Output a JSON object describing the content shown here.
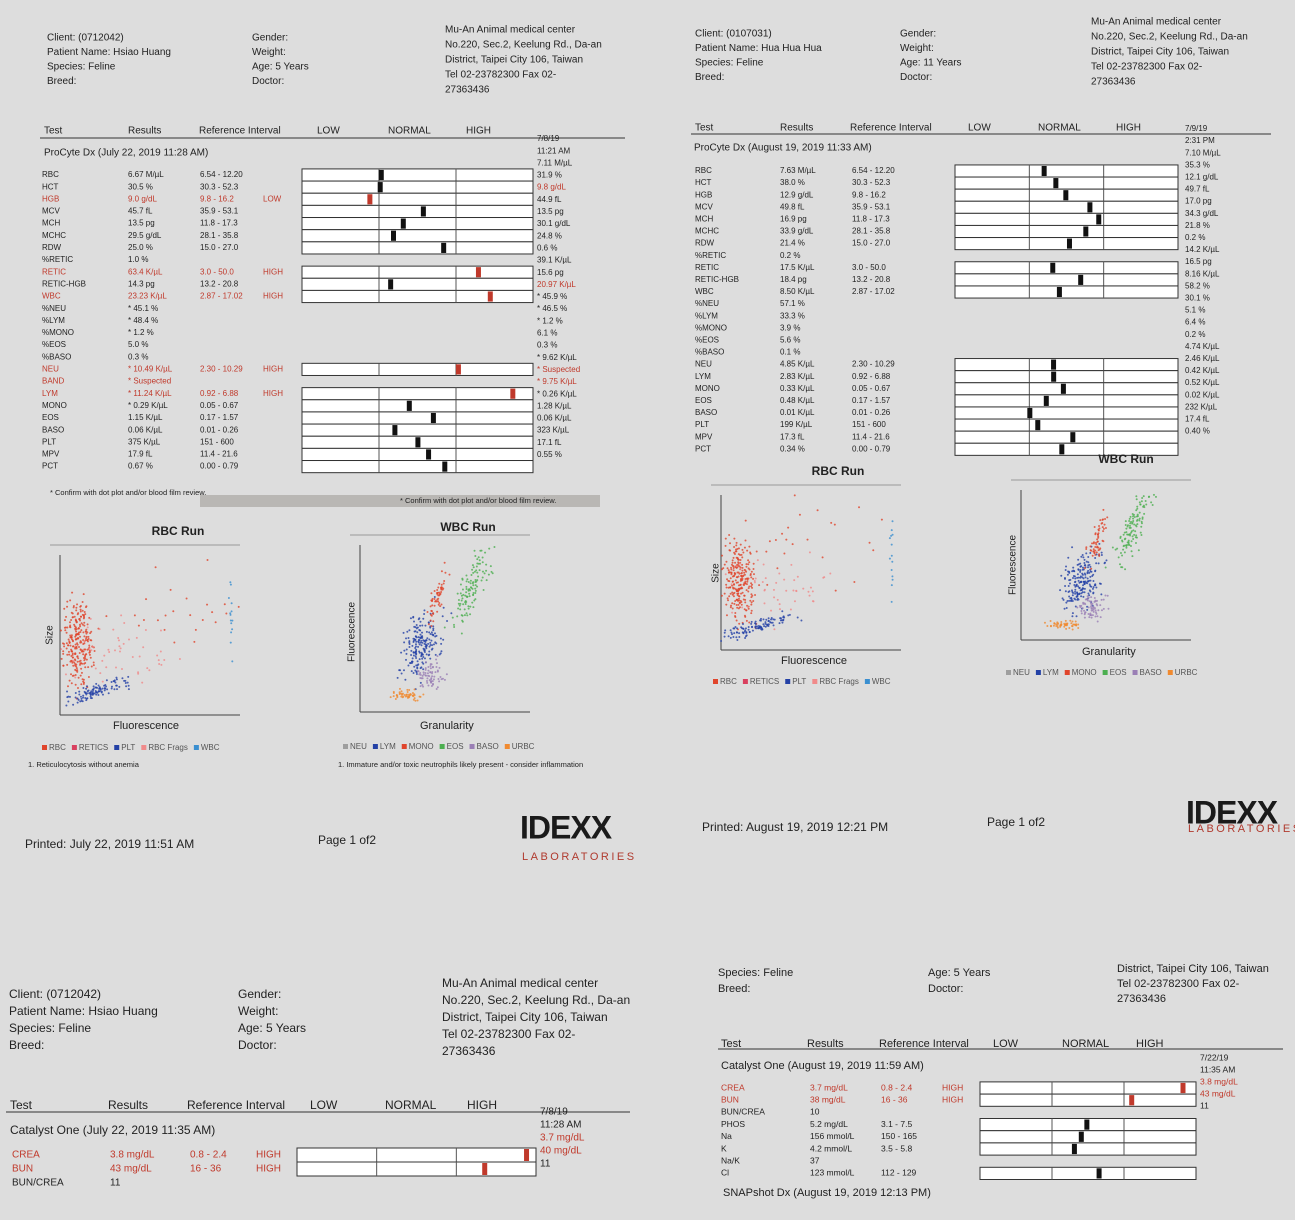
{
  "panels": [
    {
      "header": {
        "left": [
          "Client: (0712042)",
          "Patient Name: Hsiao Huang",
          "Species: Feline",
          "Breed:"
        ],
        "middle": [
          "Gender:",
          "Weight:",
          "Age: 5 Years",
          "Doctor:"
        ],
        "clinic": [
          "Mu-An Animal medical center",
          "No.220, Sec.2, Keelung Rd., Da-an",
          "District, Taipei City 106, Taiwan",
          "Tel 02-23782300  Fax 02-",
          "27363436"
        ]
      },
      "columns": {
        "test": "Test",
        "results": "Results",
        "reference": "Reference Interval",
        "low": "LOW",
        "normal": "NORMAL",
        "high": "HIGH"
      },
      "section": "ProCyte Dx (July 22, 2019 11:28 AM)",
      "rows": [
        {
          "test": "RBC",
          "result": "6.67 M/µL",
          "range": "6.54 - 12.20"
        },
        {
          "test": "HCT",
          "result": "30.5 %",
          "range": "30.3 - 52.3"
        },
        {
          "test": "HGB",
          "result": "9.0 g/dL",
          "range": "9.8 - 16.2",
          "flag": "LOW",
          "color": "#c0392b"
        },
        {
          "test": "MCV",
          "result": "45.7 fL",
          "range": "35.9 - 53.1"
        },
        {
          "test": "MCH",
          "result": "13.5 pg",
          "range": "11.8 - 17.3"
        },
        {
          "test": "MCHC",
          "result": "29.5 g/dL",
          "range": "28.1 - 35.8"
        },
        {
          "test": "RDW",
          "result": "25.0 %",
          "range": "15.0 - 27.0"
        },
        {
          "test": "%RETIC",
          "result": "1.0 %"
        },
        {
          "test": "RETIC",
          "result": "63.4 K/µL",
          "range": "3.0 - 50.0",
          "flag": "HIGH",
          "color": "#c0392b"
        },
        {
          "test": "RETIC-HGB",
          "result": "14.3 pg",
          "range": "13.2 - 20.8"
        },
        {
          "test": "WBC",
          "result": "23.23 K/µL",
          "range": "2.87 - 17.02",
          "flag": "HIGH",
          "color": "#c0392b"
        },
        {
          "test": "%NEU",
          "result": "* 45.1 %"
        },
        {
          "test": "%LYM",
          "result": "* 48.4 %"
        },
        {
          "test": "%MONO",
          "result": "* 1.2 %"
        },
        {
          "test": "%EOS",
          "result": "5.0 %"
        },
        {
          "test": "%BASO",
          "result": "0.3 %"
        },
        {
          "test": "NEU",
          "result": "* 10.49 K/µL",
          "range": "2.30 - 10.29",
          "flag": "HIGH",
          "color": "#c0392b"
        },
        {
          "test": "BAND",
          "result": "* Suspected",
          "color": "#c0392b"
        },
        {
          "test": "LYM",
          "result": "* 11.24 K/µL",
          "range": "0.92 - 6.88",
          "flag": "HIGH",
          "color": "#c0392b"
        },
        {
          "test": "MONO",
          "result": "* 0.29 K/µL",
          "range": "0.05 - 0.67"
        },
        {
          "test": "EOS",
          "result": "1.15 K/µL",
          "range": "0.17 - 1.57"
        },
        {
          "test": "BASO",
          "result": "0.06 K/µL",
          "range": "0.01 - 0.26"
        },
        {
          "test": "PLT",
          "result": "375 K/µL",
          "range": "151 - 600"
        },
        {
          "test": "MPV",
          "result": "17.9 fL",
          "range": "11.4 - 21.6"
        },
        {
          "test": "PCT",
          "result": "0.67 %",
          "range": "0.00 - 0.79"
        }
      ],
      "prior": [
        "7/8/19",
        "11:21 AM",
        "7.11 M/µL",
        "31.9 %",
        {
          "text": "9.8 g/dL",
          "color": "#c0392b"
        },
        "44.9 fL",
        "13.5 pg",
        "30.1 g/dL",
        "24.8 %",
        "0.6 %",
        "39.1 K/µL",
        "15.6 pg",
        {
          "text": "20.97 K/µL",
          "color": "#c0392b"
        },
        "* 45.9 %",
        "* 46.5 %",
        "* 1.2 %",
        "6.1 %",
        "0.3 %",
        "* 9.62 K/µL",
        {
          "text": "* Suspected",
          "color": "#c0392b"
        },
        {
          "text": "* 9.75 K/µL",
          "color": "#c0392b"
        },
        "* 0.26 K/µL",
        "1.28 K/µL",
        "0.06 K/µL",
        "323 K/µL",
        "17.1 fL",
        "0.55 %"
      ],
      "footnotes": [
        "* Confirm with dot plot and/or blood film review.",
        "* Confirm with dot plot and/or blood film review."
      ],
      "plots": [
        {
          "title": "RBC Run",
          "ylabel": "Size",
          "xlabel": "Fluorescence",
          "legend": [
            {
              "name": "RBC",
              "color": "#e0452c"
            },
            {
              "name": "RETICS",
              "color": "#d9405f"
            },
            {
              "name": "PLT",
              "color": "#2441a6"
            },
            {
              "name": "RBC Frags",
              "color": "#f08a8a"
            },
            {
              "name": "WBC",
              "color": "#3a8fd0"
            }
          ],
          "note": "1. Reticulocytosis without anemia"
        },
        {
          "title": "WBC Run",
          "ylabel": "Fluorescence",
          "xlabel": "Granularity",
          "legend": [
            {
              "name": "NEU",
              "color": "#9e9e9e"
            },
            {
              "name": "LYM",
              "color": "#2441a6"
            },
            {
              "name": "MONO",
              "color": "#e0452c"
            },
            {
              "name": "EOS",
              "color": "#4caf50"
            },
            {
              "name": "BASO",
              "color": "#9a7fb5"
            },
            {
              "name": "URBC",
              "color": "#f08a30"
            }
          ],
          "note": "1. Immature and/or toxic neutrophils likely present - consider inflammation"
        }
      ],
      "footer": {
        "printed": "Printed: July 22, 2019 11:51 AM",
        "page": "Page 1 of2",
        "logo": "IDEXX",
        "logo_sub": "LABORATORIES"
      }
    },
    {
      "header": {
        "left": [
          "Client: (0107031)",
          "Patient Name: Hua Hua Hua",
          "Species: Feline",
          "Breed:"
        ],
        "middle": [
          "Gender:",
          "Weight:",
          "Age: 11 Years",
          "Doctor:"
        ],
        "clinic": [
          "Mu-An Animal medical center",
          "No.220, Sec.2, Keelung Rd., Da-an",
          "District, Taipei City 106, Taiwan",
          "Tel 02-23782300  Fax 02-",
          "27363436"
        ]
      },
      "columns": {
        "test": "Test",
        "results": "Results",
        "reference": "Reference Interval",
        "low": "LOW",
        "normal": "NORMAL",
        "high": "HIGH"
      },
      "section": "ProCyte Dx (August 19, 2019 11:33 AM)",
      "rows": [
        {
          "test": "RBC",
          "result": "7.63 M/µL",
          "range": "6.54 - 12.20"
        },
        {
          "test": "HCT",
          "result": "38.0 %",
          "range": "30.3 - 52.3"
        },
        {
          "test": "HGB",
          "result": "12.9 g/dL",
          "range": "9.8 - 16.2"
        },
        {
          "test": "MCV",
          "result": "49.8 fL",
          "range": "35.9 - 53.1"
        },
        {
          "test": "MCH",
          "result": "16.9 pg",
          "range": "11.8 - 17.3"
        },
        {
          "test": "MCHC",
          "result": "33.9 g/dL",
          "range": "28.1 - 35.8"
        },
        {
          "test": "RDW",
          "result": "21.4 %",
          "range": "15.0 - 27.0"
        },
        {
          "test": "%RETIC",
          "result": "0.2 %"
        },
        {
          "test": "RETIC",
          "result": "17.5 K/µL",
          "range": "3.0 - 50.0"
        },
        {
          "test": "RETIC-HGB",
          "result": "18.4 pg",
          "range": "13.2 - 20.8"
        },
        {
          "test": "WBC",
          "result": "8.50 K/µL",
          "range": "2.87 - 17.02"
        },
        {
          "test": "%NEU",
          "result": "57.1 %"
        },
        {
          "test": "%LYM",
          "result": "33.3 %"
        },
        {
          "test": "%MONO",
          "result": "3.9 %"
        },
        {
          "test": "%EOS",
          "result": "5.6 %"
        },
        {
          "test": "%BASO",
          "result": "0.1 %"
        },
        {
          "test": "NEU",
          "result": "4.85 K/µL",
          "range": "2.30 - 10.29"
        },
        {
          "test": "LYM",
          "result": "2.83 K/µL",
          "range": "0.92 - 6.88"
        },
        {
          "test": "MONO",
          "result": "0.33 K/µL",
          "range": "0.05 - 0.67"
        },
        {
          "test": "EOS",
          "result": "0.48 K/µL",
          "range": "0.17 - 1.57"
        },
        {
          "test": "BASO",
          "result": "0.01 K/µL",
          "range": "0.01 - 0.26"
        },
        {
          "test": "PLT",
          "result": "199 K/µL",
          "range": "151 - 600"
        },
        {
          "test": "MPV",
          "result": "17.3 fL",
          "range": "11.4 - 21.6"
        },
        {
          "test": "PCT",
          "result": "0.34 %",
          "range": "0.00 - 0.79"
        }
      ],
      "prior": [
        "7/9/19",
        "2:31 PM",
        "7.10 M/µL",
        "35.3 %",
        "12.1 g/dL",
        "49.7 fL",
        "17.0 pg",
        "34.3 g/dL",
        "21.8 %",
        "0.2 %",
        "14.2 K/µL",
        "16.5 pg",
        "8.16 K/µL",
        "58.2 %",
        "30.1 %",
        "5.1 %",
        "6.4 %",
        "0.2 %",
        "4.74 K/µL",
        "2.46 K/µL",
        "0.42 K/µL",
        "0.52 K/µL",
        "0.02 K/µL",
        "232 K/µL",
        "17.4 fL",
        "0.40 %"
      ],
      "plots": [
        {
          "title": "RBC Run",
          "ylabel": "Size",
          "xlabel": "Fluorescence",
          "legend": [
            {
              "name": "RBC",
              "color": "#e0452c"
            },
            {
              "name": "RETICS",
              "color": "#d9405f"
            },
            {
              "name": "PLT",
              "color": "#2441a6"
            },
            {
              "name": "RBC Frags",
              "color": "#f08a8a"
            },
            {
              "name": "WBC",
              "color": "#3a8fd0"
            }
          ]
        },
        {
          "title": "WBC Run",
          "ylabel": "Fluorescence",
          "xlabel": "Granularity",
          "legend": [
            {
              "name": "NEU",
              "color": "#9e9e9e"
            },
            {
              "name": "LYM",
              "color": "#2441a6"
            },
            {
              "name": "MONO",
              "color": "#e0452c"
            },
            {
              "name": "EOS",
              "color": "#4caf50"
            },
            {
              "name": "BASO",
              "color": "#9a7fb5"
            },
            {
              "name": "URBC",
              "color": "#f08a30"
            }
          ]
        }
      ],
      "footer": {
        "printed": "Printed: August 19, 2019 12:21 PM",
        "page": "Page 1 of2",
        "logo": "IDEXX",
        "logo_sub": "LABORATORIES"
      }
    },
    {
      "header": {
        "left": [
          "Client: (0712042)",
          "Patient Name: Hsiao Huang",
          "Species: Feline",
          "Breed:"
        ],
        "middle": [
          "Gender:",
          "Weight:",
          "Age: 5 Years",
          "Doctor:"
        ],
        "clinic": [
          "Mu-An Animal medical center",
          "No.220, Sec.2, Keelung Rd., Da-an",
          "District, Taipei City 106, Taiwan",
          "Tel 02-23782300  Fax 02-",
          "27363436"
        ]
      },
      "columns": {
        "test": "Test",
        "results": "Results",
        "reference": "Reference Interval",
        "low": "LOW",
        "normal": "NORMAL",
        "high": "HIGH"
      },
      "section": "Catalyst One (July 22, 2019 11:35 AM)",
      "rows": [
        {
          "test": "CREA",
          "result": "3.8 mg/dL",
          "range": "0.8 - 2.4",
          "flag": "HIGH",
          "color": "#c0392b"
        },
        {
          "test": "BUN",
          "result": "43 mg/dL",
          "range": "16 - 36",
          "flag": "HIGH",
          "color": "#c0392b"
        },
        {
          "test": "BUN/CREA",
          "result": "11"
        }
      ],
      "prior": [
        "7/8/19",
        "11:28 AM",
        {
          "text": "3.7 mg/dL",
          "color": "#c0392b"
        },
        {
          "text": "40 mg/dL",
          "color": "#c0392b"
        },
        "11"
      ]
    },
    {
      "header": {
        "left": [
          "Species: Feline",
          "Breed:"
        ],
        "middle": [
          "Age: 5 Years",
          "Doctor:"
        ],
        "clinic": [
          "District, Taipei City 106, Taiwan",
          "Tel 02-23782300  Fax 02-",
          "27363436"
        ]
      },
      "columns": {
        "test": "Test",
        "results": "Results",
        "reference": "Reference Interval",
        "low": "LOW",
        "normal": "NORMAL",
        "high": "HIGH"
      },
      "section": "Catalyst One (August 19, 2019 11:59 AM)",
      "rows": [
        {
          "test": "CREA",
          "result": "3.7 mg/dL",
          "range": "0.8 - 2.4",
          "flag": "HIGH",
          "color": "#c0392b"
        },
        {
          "test": "BUN",
          "result": "38 mg/dL",
          "range": "16 - 36",
          "flag": "HIGH",
          "color": "#c0392b"
        },
        {
          "test": "BUN/CREA",
          "result": "10"
        },
        {
          "test": "PHOS",
          "result": "5.2 mg/dL",
          "range": "3.1 - 7.5"
        },
        {
          "test": "Na",
          "result": "156 mmol/L",
          "range": "150 - 165"
        },
        {
          "test": "K",
          "result": "4.2 mmol/L",
          "range": "3.5 - 5.8"
        },
        {
          "test": "Na/K",
          "result": "37"
        },
        {
          "test": "Cl",
          "result": "123 mmol/L",
          "range": "112 - 129"
        }
      ],
      "prior": [
        "7/22/19",
        "11:35 AM",
        {
          "text": "3.8 mg/dL",
          "color": "#c0392b"
        },
        {
          "text": "43 mg/dL",
          "color": "#c0392b"
        },
        "11"
      ],
      "next_section": "SNAPshot Dx (August 19, 2019 12:13 PM)"
    }
  ]
}
